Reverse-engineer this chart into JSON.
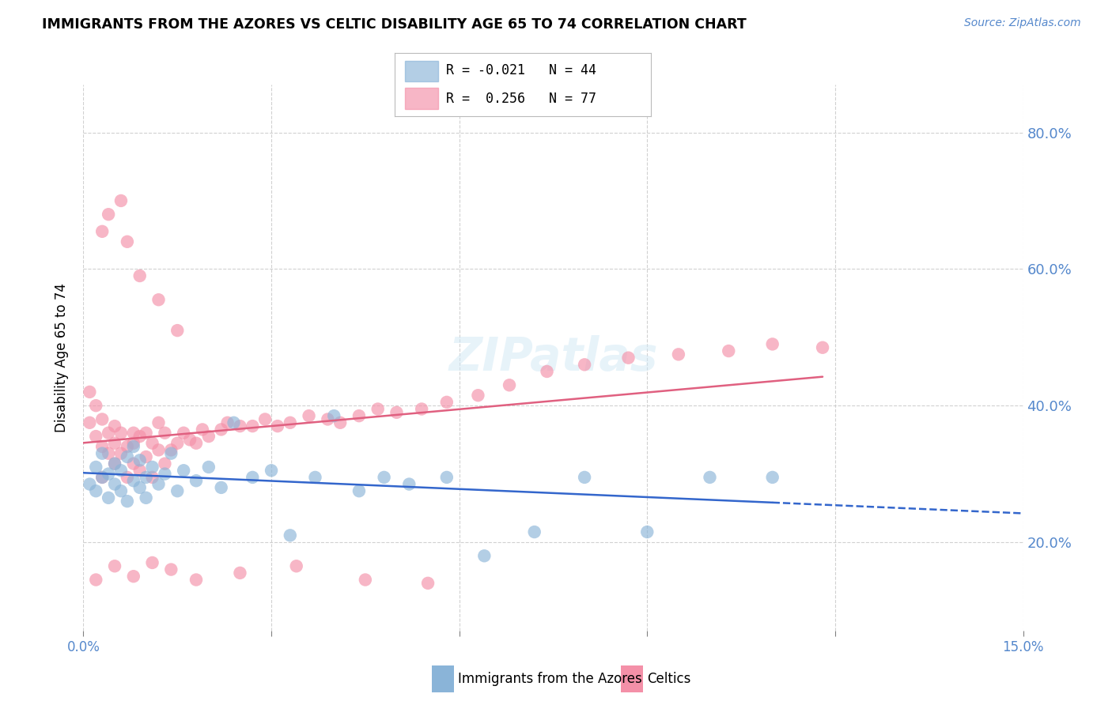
{
  "title": "IMMIGRANTS FROM THE AZORES VS CELTIC DISABILITY AGE 65 TO 74 CORRELATION CHART",
  "source": "Source: ZipAtlas.com",
  "ylabel": "Disability Age 65 to 74",
  "xlim": [
    0.0,
    0.15
  ],
  "ylim": [
    0.07,
    0.87
  ],
  "azores_color": "#8ab4d8",
  "celtics_color": "#f490a8",
  "trend_blue": "#3366cc",
  "trend_pink": "#e06080",
  "azores_R": -0.021,
  "azores_N": 44,
  "celtics_R": 0.256,
  "celtics_N": 77,
  "background_color": "#ffffff",
  "grid_color": "#cccccc",
  "right_tick_color": "#5588cc",
  "x_tick_color": "#5588cc",
  "azores_x": [
    0.001,
    0.002,
    0.002,
    0.003,
    0.003,
    0.004,
    0.004,
    0.005,
    0.005,
    0.006,
    0.006,
    0.007,
    0.007,
    0.008,
    0.008,
    0.009,
    0.009,
    0.01,
    0.01,
    0.011,
    0.012,
    0.013,
    0.014,
    0.015,
    0.016,
    0.018,
    0.02,
    0.022,
    0.024,
    0.027,
    0.03,
    0.033,
    0.037,
    0.04,
    0.044,
    0.048,
    0.052,
    0.058,
    0.064,
    0.072,
    0.08,
    0.09,
    0.1,
    0.11
  ],
  "azores_y": [
    0.285,
    0.31,
    0.275,
    0.295,
    0.33,
    0.3,
    0.265,
    0.315,
    0.285,
    0.275,
    0.305,
    0.325,
    0.26,
    0.34,
    0.29,
    0.28,
    0.32,
    0.295,
    0.265,
    0.31,
    0.285,
    0.3,
    0.33,
    0.275,
    0.305,
    0.29,
    0.31,
    0.28,
    0.375,
    0.295,
    0.305,
    0.21,
    0.295,
    0.385,
    0.275,
    0.295,
    0.285,
    0.295,
    0.18,
    0.215,
    0.295,
    0.215,
    0.295,
    0.295
  ],
  "celtics_x": [
    0.001,
    0.001,
    0.002,
    0.002,
    0.003,
    0.003,
    0.003,
    0.004,
    0.004,
    0.005,
    0.005,
    0.005,
    0.006,
    0.006,
    0.007,
    0.007,
    0.008,
    0.008,
    0.008,
    0.009,
    0.009,
    0.01,
    0.01,
    0.011,
    0.011,
    0.012,
    0.012,
    0.013,
    0.013,
    0.014,
    0.015,
    0.016,
    0.017,
    0.018,
    0.019,
    0.02,
    0.022,
    0.023,
    0.025,
    0.027,
    0.029,
    0.031,
    0.033,
    0.036,
    0.039,
    0.041,
    0.044,
    0.047,
    0.05,
    0.054,
    0.058,
    0.063,
    0.068,
    0.074,
    0.08,
    0.087,
    0.095,
    0.103,
    0.11,
    0.118,
    0.003,
    0.004,
    0.006,
    0.007,
    0.009,
    0.012,
    0.015,
    0.002,
    0.005,
    0.008,
    0.011,
    0.014,
    0.018,
    0.025,
    0.034,
    0.045,
    0.055
  ],
  "celtics_y": [
    0.375,
    0.42,
    0.355,
    0.4,
    0.34,
    0.38,
    0.295,
    0.36,
    0.33,
    0.37,
    0.315,
    0.345,
    0.33,
    0.36,
    0.34,
    0.295,
    0.36,
    0.315,
    0.345,
    0.305,
    0.355,
    0.325,
    0.36,
    0.345,
    0.295,
    0.335,
    0.375,
    0.315,
    0.36,
    0.335,
    0.345,
    0.36,
    0.35,
    0.345,
    0.365,
    0.355,
    0.365,
    0.375,
    0.37,
    0.37,
    0.38,
    0.37,
    0.375,
    0.385,
    0.38,
    0.375,
    0.385,
    0.395,
    0.39,
    0.395,
    0.405,
    0.415,
    0.43,
    0.45,
    0.46,
    0.47,
    0.475,
    0.48,
    0.49,
    0.485,
    0.655,
    0.68,
    0.7,
    0.64,
    0.59,
    0.555,
    0.51,
    0.145,
    0.165,
    0.15,
    0.17,
    0.16,
    0.145,
    0.155,
    0.165,
    0.145,
    0.14
  ]
}
